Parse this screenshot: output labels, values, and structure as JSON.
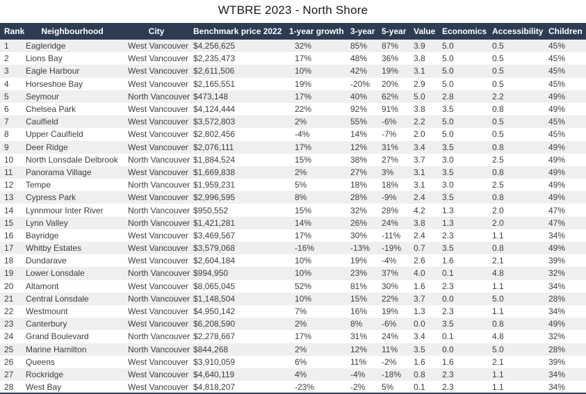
{
  "title": "WTBRE 2023 - North Shore",
  "colors": {
    "header_bg": "#2d3c52",
    "header_text": "#ffffff",
    "stripe_bg": "#efefef",
    "row_text": "#3d3d3d"
  },
  "chart_data": {
    "type": "table",
    "title": "WTBRE 2023 - North Shore",
    "columns": [
      "Rank",
      "Neighbourhood",
      "City",
      "Benchmark price 2022",
      "1-year growth",
      "3-year",
      "5-year",
      "Value",
      "Economics",
      "Accessibility",
      "Children"
    ],
    "rows": [
      [
        "1",
        "Eagleridge",
        "West Vancouver",
        "$4,256,625",
        "32%",
        "85%",
        "87%",
        "3.9",
        "5.0",
        "0.5",
        "45%"
      ],
      [
        "2",
        "Lions Bay",
        "West Vancouver",
        "$2,235,473",
        "17%",
        "48%",
        "36%",
        "3.8",
        "5.0",
        "0.5",
        "45%"
      ],
      [
        "3",
        "Eagle Harbour",
        "West Vancouver",
        "$2,611,506",
        "10%",
        "42%",
        "19%",
        "3.1",
        "5.0",
        "0.5",
        "45%"
      ],
      [
        "4",
        "Horseshoe Bay",
        "West Vancouver",
        "$2,165,551",
        "19%",
        "-20%",
        "20%",
        "2.9",
        "5.0",
        "0.5",
        "45%"
      ],
      [
        "5",
        "Seymour",
        "North Vancouver",
        "$473,148",
        "17%",
        "40%",
        "62%",
        "5.0",
        "2.8",
        "2.2",
        "49%"
      ],
      [
        "6",
        "Chelsea Park",
        "West Vancouver",
        "$4,124,444",
        "22%",
        "92%",
        "91%",
        "3.8",
        "3.5",
        "0.8",
        "49%"
      ],
      [
        "7",
        "Caulfield",
        "West Vancouver",
        "$3,572,803",
        "2%",
        "55%",
        "-6%",
        "2.2",
        "5.0",
        "0.5",
        "45%"
      ],
      [
        "8",
        "Upper Caulfield",
        "West Vancouver",
        "$2,802,456",
        "-4%",
        "14%",
        "-7%",
        "2.0",
        "5.0",
        "0.5",
        "45%"
      ],
      [
        "9",
        "Deer Ridge",
        "West Vancouver",
        "$2,076,111",
        "17%",
        "12%",
        "31%",
        "3.4",
        "3.5",
        "0.8",
        "49%"
      ],
      [
        "10",
        "North Lonsdale Delbrook",
        "North Vancouver",
        "$1,884,524",
        "15%",
        "38%",
        "27%",
        "3.7",
        "3.0",
        "2.5",
        "49%"
      ],
      [
        "11",
        "Panorama Village",
        "West Vancouver",
        "$1,669,838",
        "2%",
        "27%",
        "3%",
        "3.1",
        "3.5",
        "0.8",
        "49%"
      ],
      [
        "12",
        "Tempe",
        "North Vancouver",
        "$1,959,231",
        "5%",
        "18%",
        "18%",
        "3.1",
        "3.0",
        "2.5",
        "49%"
      ],
      [
        "13",
        "Cypress Park",
        "West Vancouver",
        "$2,996,595",
        "8%",
        "28%",
        "-9%",
        "2.4",
        "3.5",
        "0.8",
        "49%"
      ],
      [
        "14",
        "Lynnmour Inter River",
        "North Vancouver",
        "$950,552",
        "15%",
        "32%",
        "28%",
        "4.2",
        "1.3",
        "2.0",
        "47%"
      ],
      [
        "15",
        "Lynn Valley",
        "North Vancouver",
        "$1,421,281",
        "14%",
        "26%",
        "24%",
        "3.8",
        "1.3",
        "2.0",
        "47%"
      ],
      [
        "16",
        "Bayridge",
        "West Vancouver",
        "$3,469,567",
        "17%",
        "30%",
        "-11%",
        "2.4",
        "2.3",
        "1.1",
        "34%"
      ],
      [
        "17",
        "Whitby Estates",
        "West Vancouver",
        "$3,579,068",
        "-16%",
        "-13%",
        "-19%",
        "0.7",
        "3.5",
        "0.8",
        "49%"
      ],
      [
        "18",
        "Dundarave",
        "West Vancouver",
        "$2,604,184",
        "10%",
        "19%",
        "-4%",
        "2.6",
        "1.6",
        "2.1",
        "39%"
      ],
      [
        "19",
        "Lower Lonsdale",
        "North Vancouver",
        "$994,950",
        "10%",
        "23%",
        "37%",
        "4.0",
        "0.1",
        "4.8",
        "32%"
      ],
      [
        "20",
        "Altamont",
        "West Vancouver",
        "$8,065,045",
        "52%",
        "81%",
        "30%",
        "1.6",
        "2.3",
        "1.1",
        "34%"
      ],
      [
        "21",
        "Central Lonsdale",
        "North Vancouver",
        "$1,148,504",
        "10%",
        "15%",
        "22%",
        "3.7",
        "0.0",
        "5.0",
        "28%"
      ],
      [
        "22",
        "Westmount",
        "West Vancouver",
        "$4,950,142",
        "7%",
        "16%",
        "19%",
        "1.3",
        "2.3",
        "1.1",
        "34%"
      ],
      [
        "23",
        "Canterbury",
        "West Vancouver",
        "$6,208,590",
        "2%",
        "8%",
        "-6%",
        "0.0",
        "3.5",
        "0.8",
        "49%"
      ],
      [
        "24",
        "Grand Boulevard",
        "North Vancouver",
        "$2,278,667",
        "17%",
        "31%",
        "24%",
        "3.4",
        "0.1",
        "4.8",
        "32%"
      ],
      [
        "25",
        "Marine Hamilton",
        "North Vancouver",
        "$844,268",
        "2%",
        "12%",
        "11%",
        "3.5",
        "0.0",
        "5.0",
        "28%"
      ],
      [
        "26",
        "Queens",
        "West Vancouver",
        "$3,910,059",
        "6%",
        "11%",
        "-2%",
        "1.6",
        "1.6",
        "2.1",
        "39%"
      ],
      [
        "27",
        "Rockridge",
        "West Vancouver",
        "$4,640,119",
        "4%",
        "-4%",
        "-18%",
        "0.8",
        "2.3",
        "1.1",
        "34%"
      ],
      [
        "28",
        "West Bay",
        "West Vancouver",
        "$4,818,207",
        "-23%",
        "-2%",
        "5%",
        "0.1",
        "2.3",
        "1.1",
        "34%"
      ]
    ]
  }
}
